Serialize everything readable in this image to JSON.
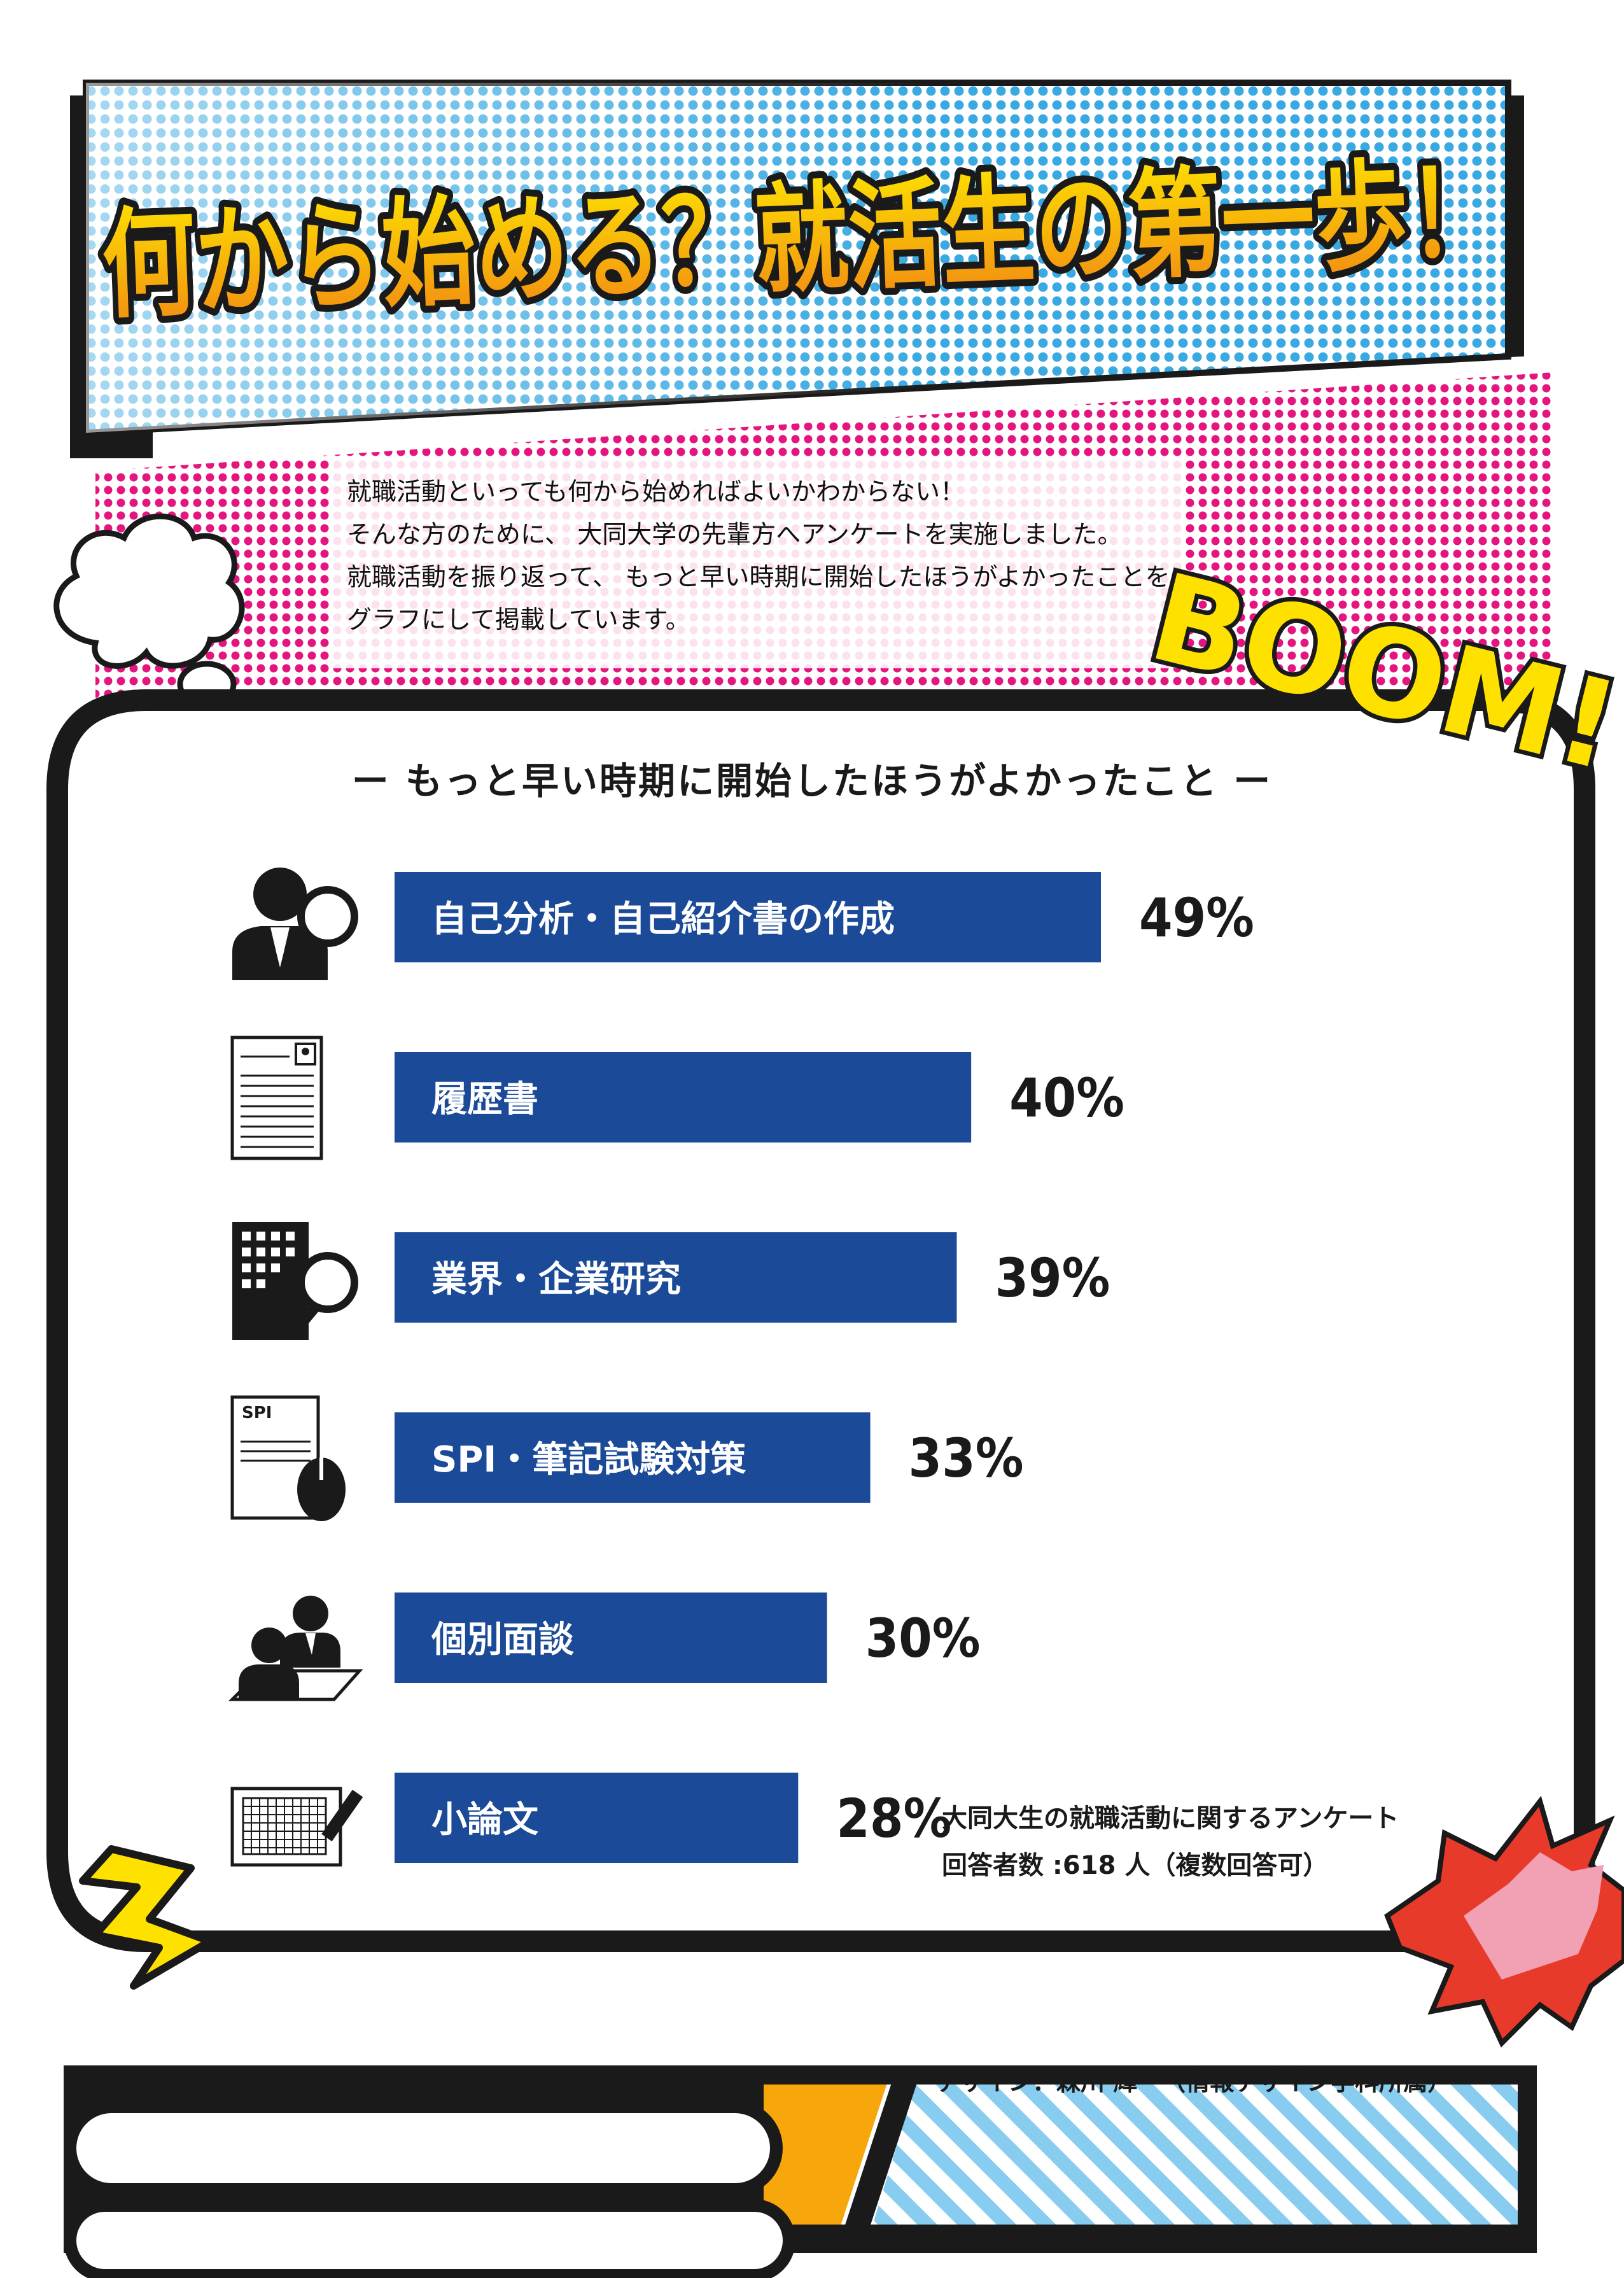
{
  "header": {
    "title": "何から始める？就活生の第一歩！"
  },
  "intro": {
    "lines": [
      "就職活動といっても何から始めればよいかわからない！",
      "そんな方のために、 大同大学の先輩方へアンケートを実施しました。",
      "就職活動を振り返って、 もっと早い時期に開始したほうがよかったことを",
      "グラフにして掲載しています。"
    ]
  },
  "boom_text": "BOOM!",
  "chart_data": {
    "type": "bar",
    "orientation": "horizontal",
    "title": "ー もっと早い時期に開始したほうがよかったこと ー",
    "categories": [
      "自己分析・自己紹介書の作成",
      "履歴書",
      "業界・企業研究",
      "SPI・筆記試験対策",
      "個別面談",
      "小論文"
    ],
    "values": [
      49,
      40,
      39,
      33,
      30,
      28
    ],
    "value_labels": [
      "49%",
      "40%",
      "39%",
      "33%",
      "30%",
      "28%"
    ],
    "icons": [
      "person-magnifier-icon",
      "resume-icon",
      "building-magnifier-icon",
      "spi-test-icon",
      "interview-icon",
      "essay-grid-icon"
    ],
    "spi_icon_text": "SPI",
    "bar_color": "#1b4a98",
    "xlim": [
      0,
      49
    ]
  },
  "source": {
    "line1": "大同大生の就職活動に関するアンケート",
    "line2": "回答者数 :618 人（複数回答可）"
  },
  "credit": "デザイン：森川 輝一（情報デザイン学科所属）",
  "colors": {
    "blue_dots": "#39a9e1",
    "magenta_dots": "#e4157f",
    "title_gradient_top": "#fde100",
    "title_gradient_bottom": "#f28a13",
    "boom_yellow": "#ffe100",
    "orange_panel": "#f7a70b",
    "stripe_blue": "#88cdf0",
    "burst_red": "#e83a2b",
    "burst_pink": "#f2a0b4"
  }
}
